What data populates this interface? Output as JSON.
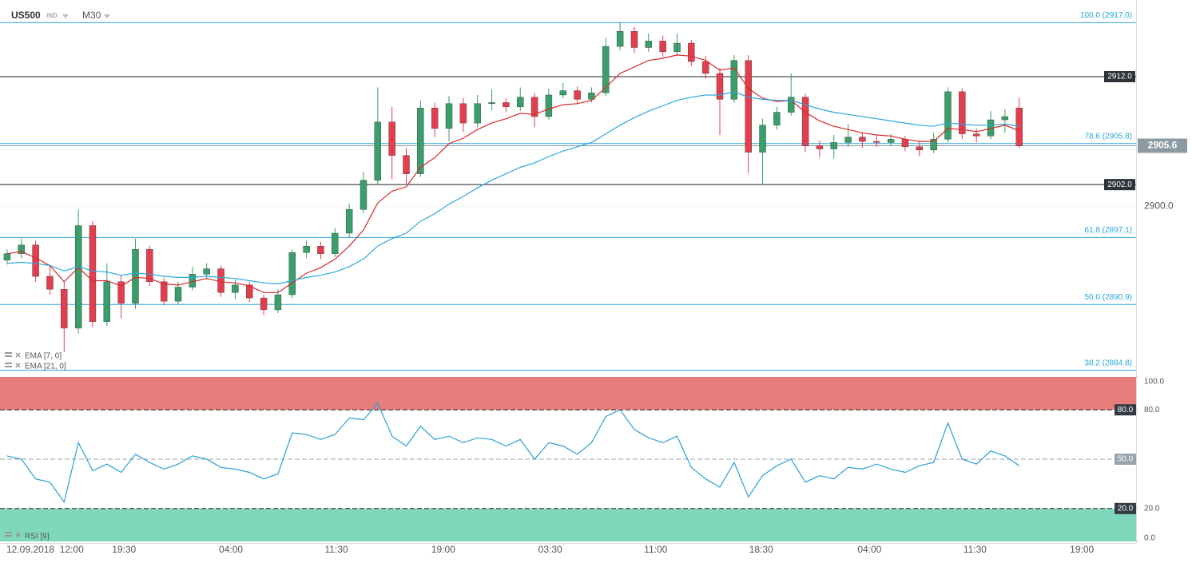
{
  "header": {
    "symbol": "US500",
    "market": "IND",
    "timeframe": "M30"
  },
  "chart_data": [
    {
      "type": "candlestick",
      "up_color": "#3a9e6a",
      "down_color": "#e33d4e",
      "ohlc": [
        [
          2895.0,
          2896.0,
          2894.6,
          2895.6
        ],
        [
          2895.6,
          2897.0,
          2895.2,
          2896.4
        ],
        [
          2896.4,
          2896.8,
          2893.0,
          2893.5
        ],
        [
          2893.5,
          2894.5,
          2891.8,
          2892.3
        ],
        [
          2892.3,
          2893.0,
          2886.5,
          2888.7
        ],
        [
          2888.7,
          2899.7,
          2888.2,
          2898.2
        ],
        [
          2898.2,
          2898.6,
          2888.8,
          2889.3
        ],
        [
          2889.3,
          2894.7,
          2888.9,
          2893.0
        ],
        [
          2893.0,
          2893.6,
          2889.6,
          2891.0
        ],
        [
          2891.0,
          2897.0,
          2890.5,
          2896.0
        ],
        [
          2896.0,
          2896.3,
          2892.6,
          2893.0
        ],
        [
          2893.0,
          2893.4,
          2890.8,
          2891.2
        ],
        [
          2891.2,
          2893.0,
          2890.9,
          2892.5
        ],
        [
          2892.5,
          2894.4,
          2892.2,
          2893.7
        ],
        [
          2893.7,
          2894.7,
          2893.2,
          2894.2
        ],
        [
          2894.2,
          2894.5,
          2891.6,
          2892.0
        ],
        [
          2892.0,
          2893.2,
          2891.4,
          2892.7
        ],
        [
          2892.7,
          2893.0,
          2891.1,
          2891.5
        ],
        [
          2891.5,
          2891.8,
          2889.9,
          2890.4
        ],
        [
          2890.4,
          2892.3,
          2890.1,
          2891.8
        ],
        [
          2891.8,
          2896.0,
          2891.5,
          2895.7
        ],
        [
          2895.7,
          2896.8,
          2895.2,
          2896.3
        ],
        [
          2896.3,
          2896.7,
          2895.1,
          2895.6
        ],
        [
          2895.6,
          2898.0,
          2895.3,
          2897.5
        ],
        [
          2897.5,
          2900.2,
          2897.1,
          2899.7
        ],
        [
          2899.7,
          2903.2,
          2899.3,
          2902.4
        ],
        [
          2902.4,
          2911.0,
          2902.0,
          2907.8
        ],
        [
          2907.8,
          2909.2,
          2902.5,
          2904.7
        ],
        [
          2904.7,
          2905.4,
          2902.1,
          2903.0
        ],
        [
          2903.0,
          2909.8,
          2902.7,
          2909.1
        ],
        [
          2909.1,
          2909.6,
          2906.4,
          2907.2
        ],
        [
          2907.2,
          2910.2,
          2906.0,
          2909.5
        ],
        [
          2909.5,
          2910.0,
          2906.9,
          2907.7
        ],
        [
          2907.7,
          2910.3,
          2907.3,
          2909.5
        ],
        [
          2909.5,
          2910.8,
          2908.9,
          2909.6
        ],
        [
          2909.6,
          2910.0,
          2908.7,
          2909.2
        ],
        [
          2909.2,
          2911.0,
          2908.8,
          2910.1
        ],
        [
          2910.1,
          2910.5,
          2907.3,
          2908.3
        ],
        [
          2908.3,
          2910.9,
          2908.0,
          2910.3
        ],
        [
          2910.3,
          2911.4,
          2910.0,
          2910.7
        ],
        [
          2910.7,
          2911.1,
          2909.5,
          2909.9
        ],
        [
          2909.9,
          2911.0,
          2909.6,
          2910.5
        ],
        [
          2910.5,
          2915.6,
          2910.2,
          2914.8
        ],
        [
          2914.8,
          2917.0,
          2914.4,
          2916.2
        ],
        [
          2916.2,
          2916.6,
          2914.2,
          2914.7
        ],
        [
          2914.7,
          2916.0,
          2914.3,
          2915.3
        ],
        [
          2915.3,
          2915.8,
          2913.8,
          2914.3
        ],
        [
          2914.3,
          2916.0,
          2913.9,
          2915.1
        ],
        [
          2915.1,
          2915.4,
          2913.0,
          2913.4
        ],
        [
          2913.4,
          2913.9,
          2911.8,
          2912.3
        ],
        [
          2912.3,
          2912.8,
          2906.6,
          2909.9
        ],
        [
          2909.9,
          2914.0,
          2909.6,
          2913.5
        ],
        [
          2913.5,
          2914.0,
          2903.0,
          2905.0
        ],
        [
          2905.0,
          2908.1,
          2902.0,
          2907.5
        ],
        [
          2907.5,
          2909.2,
          2907.1,
          2908.7
        ],
        [
          2908.7,
          2912.3,
          2908.4,
          2910.1
        ],
        [
          2910.1,
          2910.4,
          2905.0,
          2905.6
        ],
        [
          2905.6,
          2906.1,
          2904.5,
          2905.3
        ],
        [
          2905.3,
          2906.6,
          2904.4,
          2905.9
        ],
        [
          2905.9,
          2907.6,
          2905.5,
          2906.4
        ],
        [
          2906.4,
          2906.8,
          2905.4,
          2906.0
        ],
        [
          2906.0,
          2906.6,
          2905.5,
          2905.9
        ],
        [
          2905.9,
          2906.7,
          2905.6,
          2906.2
        ],
        [
          2906.2,
          2906.5,
          2905.1,
          2905.5
        ],
        [
          2905.5,
          2906.0,
          2904.6,
          2905.2
        ],
        [
          2905.2,
          2906.8,
          2904.9,
          2906.2
        ],
        [
          2906.2,
          2911.0,
          2905.9,
          2910.6
        ],
        [
          2910.6,
          2910.9,
          2906.2,
          2906.7
        ],
        [
          2906.7,
          2907.2,
          2905.9,
          2906.5
        ],
        [
          2906.5,
          2908.8,
          2906.2,
          2908.0
        ],
        [
          2908.0,
          2909.0,
          2906.8,
          2908.3
        ],
        [
          2909.1,
          2910.0,
          2905.4,
          2905.6
        ]
      ],
      "series": [
        {
          "name": "EMA [7, 0]",
          "color": "#d92b2b",
          "values": [
            2895.6,
            2895.8,
            2895.2,
            2894.5,
            2893.0,
            2894.3,
            2893.1,
            2893.1,
            2892.6,
            2893.4,
            2893.3,
            2892.8,
            2892.7,
            2893.0,
            2893.3,
            2893.0,
            2892.9,
            2892.6,
            2892.0,
            2892.0,
            2892.9,
            2893.8,
            2894.3,
            2895.1,
            2896.3,
            2897.8,
            2900.3,
            2901.4,
            2901.8,
            2903.6,
            2904.5,
            2905.8,
            2906.3,
            2907.1,
            2907.7,
            2908.1,
            2908.6,
            2908.5,
            2909.0,
            2909.4,
            2909.5,
            2909.8,
            2911.0,
            2912.3,
            2912.9,
            2913.5,
            2913.7,
            2914.0,
            2913.9,
            2913.5,
            2912.6,
            2912.8,
            2910.9,
            2910.0,
            2909.7,
            2909.8,
            2908.7,
            2907.9,
            2907.4,
            2907.1,
            2906.8,
            2906.6,
            2906.5,
            2906.2,
            2906.0,
            2906.0,
            2907.2,
            2907.1,
            2906.9,
            2907.2,
            2907.5,
            2907.0
          ]
        },
        {
          "name": "EMA [21, 0]",
          "color": "#2ba7dd",
          "values": [
            2894.7,
            2894.8,
            2894.7,
            2894.5,
            2894.0,
            2894.4,
            2894.0,
            2893.9,
            2893.6,
            2893.8,
            2893.7,
            2893.5,
            2893.4,
            2893.4,
            2893.5,
            2893.4,
            2893.3,
            2893.1,
            2892.9,
            2892.8,
            2893.1,
            2893.4,
            2893.6,
            2893.9,
            2894.4,
            2895.1,
            2896.3,
            2897.0,
            2897.5,
            2898.6,
            2899.3,
            2900.2,
            2900.9,
            2901.7,
            2902.4,
            2903.0,
            2903.6,
            2904.0,
            2904.6,
            2905.1,
            2905.5,
            2905.9,
            2906.7,
            2907.5,
            2908.2,
            2908.8,
            2909.3,
            2909.8,
            2910.1,
            2910.3,
            2910.3,
            2910.6,
            2910.1,
            2909.9,
            2909.8,
            2909.8,
            2909.4,
            2909.0,
            2908.7,
            2908.5,
            2908.3,
            2908.1,
            2907.9,
            2907.7,
            2907.5,
            2907.4,
            2907.7,
            2907.6,
            2907.5,
            2907.5,
            2907.6,
            2907.4
          ]
        }
      ],
      "xlim": [
        -0.5,
        79.2
      ],
      "ylim": [
        2884.7,
        2919.1
      ],
      "xticks": [
        {
          "value": 0,
          "label": "12.09.2018  12:00"
        },
        {
          "value": 8.2,
          "label": "19:30"
        },
        {
          "value": 15.7,
          "label": "04:00"
        },
        {
          "value": 23.1,
          "label": "11:30"
        },
        {
          "value": 30.6,
          "label": "19:00"
        },
        {
          "value": 38.1,
          "label": "03:30"
        },
        {
          "value": 45.5,
          "label": "11:00"
        },
        {
          "value": 52.9,
          "label": "18:30"
        },
        {
          "value": 60.5,
          "label": "04:00"
        },
        {
          "value": 67.9,
          "label": "11:30"
        },
        {
          "value": 75.4,
          "label": "19:00"
        }
      ],
      "yticks": [
        {
          "value": 2900,
          "label": "2900.0"
        }
      ],
      "fib_levels": [
        {
          "value": 2917.0,
          "label": "100.0 (2917.0)"
        },
        {
          "value": 2905.8,
          "label": "78.6 (2905.8)"
        },
        {
          "value": 2897.1,
          "label": "61.8 (2897.1)"
        },
        {
          "value": 2890.9,
          "label": "50.0 (2890.9)"
        },
        {
          "value": 2884.8,
          "label": "38.2 (2884.8)"
        }
      ],
      "fib_color": "#2ba7dd",
      "price_lines": [
        {
          "value": 2912.0,
          "label": "2912.0"
        },
        {
          "value": 2902.0,
          "label": "2902.0"
        }
      ],
      "last_price": {
        "value": 2905.6,
        "label": "2905.6"
      }
    },
    {
      "type": "line",
      "series": [
        {
          "name": "RSI [9]",
          "color": "#2a9fd8",
          "values": [
            52,
            50,
            38,
            36,
            24,
            60,
            43,
            47,
            42,
            53,
            48,
            44,
            47,
            52,
            50,
            45,
            44,
            42,
            38,
            41,
            66,
            65,
            62,
            65,
            75,
            74,
            84,
            64,
            58,
            70,
            62,
            64,
            60,
            63,
            62,
            58,
            62,
            50,
            60,
            58,
            53,
            60,
            76,
            80,
            68,
            63,
            60,
            64,
            45,
            38,
            33,
            48,
            27,
            40,
            46,
            50,
            36,
            40,
            38,
            45,
            44,
            47,
            44,
            42,
            46,
            48,
            72,
            50,
            47,
            55,
            52,
            46
          ]
        }
      ],
      "ylim": [
        0,
        100
      ],
      "yticks": [
        {
          "value": 0,
          "label": "0.0"
        },
        {
          "value": 20,
          "label": "20.0"
        },
        {
          "value": 80,
          "label": "80.0"
        },
        {
          "value": 100,
          "label": "100.0"
        }
      ],
      "levels": [
        {
          "value": 80,
          "label": "80.0",
          "color": "#333b42"
        },
        {
          "value": 50,
          "label": "50.0",
          "color": "#9aa3a9"
        },
        {
          "value": 20,
          "label": "20.0",
          "color": "#333b42"
        }
      ],
      "zones": [
        {
          "from": 80,
          "to": 100,
          "color": "#e77d7b"
        },
        {
          "from": 0,
          "to": 20,
          "color": "#7fd8bc"
        }
      ]
    }
  ]
}
